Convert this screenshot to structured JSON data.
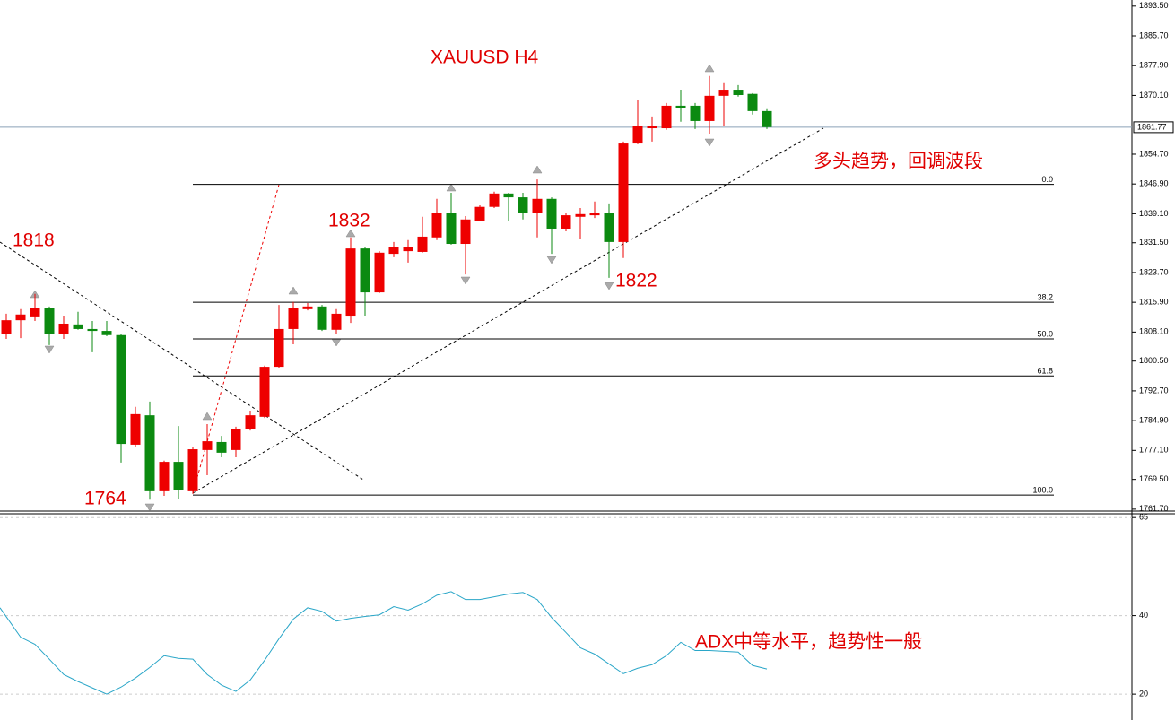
{
  "chart_data": [
    {
      "type": "candlestick",
      "title": "XAUUSD  H4",
      "annotations": [
        "1818",
        "1832",
        "1822",
        "1764",
        "多头趋势，回调波段"
      ],
      "up_color": "#ee0000",
      "down_color": "#0b8a10",
      "open": [
        1807.5,
        1811.2,
        1812.2,
        1814.5,
        1807.5,
        1810.1,
        1808.9,
        1808.4,
        1807.3,
        1778.6,
        1786.3,
        1766.4,
        1774.1,
        1766.4,
        1777.2,
        1779.3,
        1777.2,
        1782.8,
        1785.9,
        1799.0,
        1808.9,
        1814.1,
        1814.8,
        1808.7,
        1812.4,
        1830.0,
        1818.5,
        1828.6,
        1829.3,
        1829.1,
        1832.9,
        1839.2,
        1831.2,
        1837.3,
        1840.9,
        1844.4,
        1843.4,
        1839.4,
        1843.0,
        1835.2,
        1838.3,
        1838.7,
        1839.4,
        1831.7,
        1857.5,
        1861.5,
        1861.5,
        1867.4,
        1867.4,
        1863.4,
        1870.0,
        1871.6,
        1870.5,
        1866.0
      ],
      "high": [
        1812.9,
        1814.1,
        1818.1,
        1814.8,
        1812.4,
        1813.4,
        1811.0,
        1811.0,
        1807.7,
        1788.5,
        1789.9,
        1774.4,
        1783.5,
        1777.9,
        1784.0,
        1780.9,
        1783.3,
        1787.5,
        1799.3,
        1815.2,
        1816.0,
        1815.7,
        1815.2,
        1814.1,
        1832.9,
        1830.5,
        1829.3,
        1831.7,
        1832.2,
        1838.3,
        1843.0,
        1844.6,
        1838.5,
        1841.3,
        1844.9,
        1844.6,
        1844.6,
        1848.1,
        1843.4,
        1839.2,
        1840.6,
        1842.3,
        1841.8,
        1858.0,
        1868.8,
        1864.6,
        1868.1,
        1871.6,
        1868.1,
        1875.2,
        1873.3,
        1872.8,
        1870.7,
        1866.5
      ],
      "low": [
        1806.3,
        1806.5,
        1811.0,
        1804.7,
        1806.3,
        1808.7,
        1802.8,
        1807.0,
        1773.9,
        1778.1,
        1764.2,
        1765.2,
        1764.5,
        1765.7,
        1770.6,
        1775.3,
        1775.3,
        1782.3,
        1785.6,
        1798.8,
        1804.9,
        1813.8,
        1808.4,
        1807.7,
        1810.5,
        1812.4,
        1818.3,
        1827.7,
        1826.3,
        1828.9,
        1832.2,
        1831.0,
        1823.2,
        1837.1,
        1840.6,
        1837.3,
        1837.6,
        1832.9,
        1828.6,
        1834.5,
        1832.6,
        1838.0,
        1822.3,
        1827.5,
        1857.3,
        1858.0,
        1861.1,
        1863.2,
        1861.3,
        1860.1,
        1862.2,
        1869.8,
        1865.1,
        1861.3
      ],
      "close": [
        1811.2,
        1812.7,
        1814.5,
        1807.5,
        1810.3,
        1808.9,
        1808.4,
        1807.3,
        1778.8,
        1786.6,
        1766.4,
        1774.1,
        1766.8,
        1777.4,
        1779.5,
        1776.5,
        1782.8,
        1786.3,
        1799.0,
        1808.9,
        1814.3,
        1814.8,
        1808.7,
        1812.9,
        1830.0,
        1818.5,
        1828.9,
        1830.3,
        1830.3,
        1833.1,
        1839.2,
        1831.2,
        1837.6,
        1840.9,
        1844.4,
        1843.4,
        1839.4,
        1843.0,
        1835.2,
        1838.7,
        1839.0,
        1839.2,
        1831.7,
        1857.5,
        1862.2,
        1862.0,
        1867.4,
        1866.9,
        1863.4,
        1870.0,
        1871.6,
        1870.2,
        1866.0,
        1861.8
      ],
      "current_price": 1861.77,
      "fib_levels": [
        {
          "label": "0.0",
          "price": 1846.8
        },
        {
          "label": "38.2",
          "price": 1815.9
        },
        {
          "label": "50.0",
          "price": 1806.3
        },
        {
          "label": "61.8",
          "price": 1796.6
        },
        {
          "label": "100.0",
          "price": 1765.4
        }
      ],
      "ylim": [
        1761.2,
        1895.1
      ],
      "yticks": [
        {
          "value": 1893.5,
          "label": "1893.50"
        },
        {
          "value": 1885.7,
          "label": "1885.70"
        },
        {
          "value": 1877.9,
          "label": "1877.90"
        },
        {
          "value": 1870.1,
          "label": "1870.10"
        },
        {
          "value": 1854.7,
          "label": "1854.70"
        },
        {
          "value": 1846.9,
          "label": "1846.90"
        },
        {
          "value": 1839.1,
          "label": "1839.10"
        },
        {
          "value": 1831.5,
          "label": "1831.50"
        },
        {
          "value": 1823.7,
          "label": "1823.70"
        },
        {
          "value": 1815.9,
          "label": "1815.90"
        },
        {
          "value": 1808.1,
          "label": "1808.10"
        },
        {
          "value": 1800.5,
          "label": "1800.50"
        },
        {
          "value": 1792.7,
          "label": "1792.70"
        },
        {
          "value": 1784.9,
          "label": "1784.90"
        },
        {
          "value": 1777.1,
          "label": "1777.10"
        },
        {
          "value": 1769.5,
          "label": "1769.50"
        },
        {
          "value": 1761.7,
          "label": "1761.70"
        }
      ]
    },
    {
      "type": "line",
      "annotation": "ADX中等水平，趋势性一般",
      "color": "#2aa6c8",
      "values": [
        42.0,
        34.5,
        32.7,
        28.9,
        25.0,
        23.2,
        21.6,
        20.0,
        21.8,
        24.1,
        26.8,
        29.8,
        29.1,
        28.9,
        25.0,
        22.3,
        20.7,
        23.6,
        28.6,
        34.1,
        39.1,
        42.0,
        41.1,
        38.6,
        39.3,
        39.8,
        40.2,
        42.3,
        41.4,
        43.0,
        45.2,
        46.1,
        44.1,
        44.1,
        44.8,
        45.5,
        45.9,
        44.1,
        39.5,
        35.7,
        31.8,
        30.2,
        27.7,
        25.2,
        26.6,
        27.5,
        29.8,
        33.2,
        31.1,
        31.1,
        30.9,
        30.7,
        27.3,
        26.4
      ],
      "ylim": [
        13.4,
        65.5
      ],
      "yticks": [
        20,
        40,
        65
      ],
      "grid": true
    }
  ]
}
